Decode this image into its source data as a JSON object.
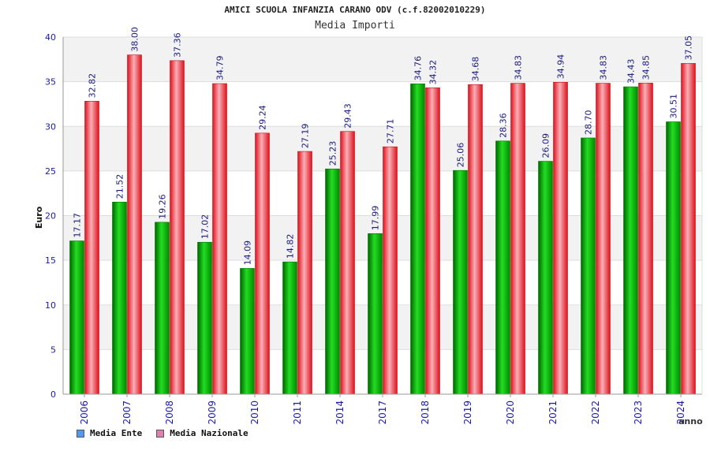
{
  "chart_data": {
    "type": "bar",
    "title": "AMICI SCUOLA INFANZIA CARANO ODV (c.f.82002010229)",
    "subtitle": "Media Importi",
    "xlabel": "anno",
    "ylabel": "Euro",
    "ylim": [
      0,
      40
    ],
    "yticks": [
      "0",
      "5",
      "10",
      "15",
      "20",
      "25",
      "30",
      "35",
      "40"
    ],
    "categories": [
      "2006",
      "2007",
      "2008",
      "2009",
      "2010",
      "2011",
      "2014",
      "2017",
      "2018",
      "2019",
      "2020",
      "2021",
      "2022",
      "2023",
      "2024"
    ],
    "series": [
      {
        "name": "Media Ente",
        "color": "#00b000",
        "values": [
          17.17,
          21.52,
          19.26,
          17.02,
          14.09,
          14.82,
          25.23,
          17.99,
          34.76,
          25.06,
          28.36,
          26.09,
          28.7,
          34.43,
          30.51
        ],
        "labels": [
          "17.17",
          "21.52",
          "19.26",
          "17.02",
          "14.09",
          "14.82",
          "25.23",
          "17.99",
          "34.76",
          "25.06",
          "28.36",
          "26.09",
          "28.70",
          "34.43",
          "30.51"
        ]
      },
      {
        "name": "Media Nazionale",
        "color": "#e8202a",
        "values": [
          32.82,
          38.0,
          37.36,
          34.79,
          29.24,
          27.19,
          29.43,
          27.71,
          34.32,
          34.68,
          34.83,
          34.94,
          34.83,
          34.85,
          37.05
        ],
        "labels": [
          "32.82",
          "38.00",
          "37.36",
          "34.79",
          "29.24",
          "27.19",
          "29.43",
          "27.71",
          "34.32",
          "34.68",
          "34.83",
          "34.94",
          "34.83",
          "34.85",
          "37.05"
        ]
      }
    ],
    "legend": [
      {
        "label": "Media Ente",
        "color": "#5599ee"
      },
      {
        "label": "Media Nazionale",
        "color": "#e080b0"
      }
    ],
    "legend_position": "bottom-left",
    "grid": true
  }
}
